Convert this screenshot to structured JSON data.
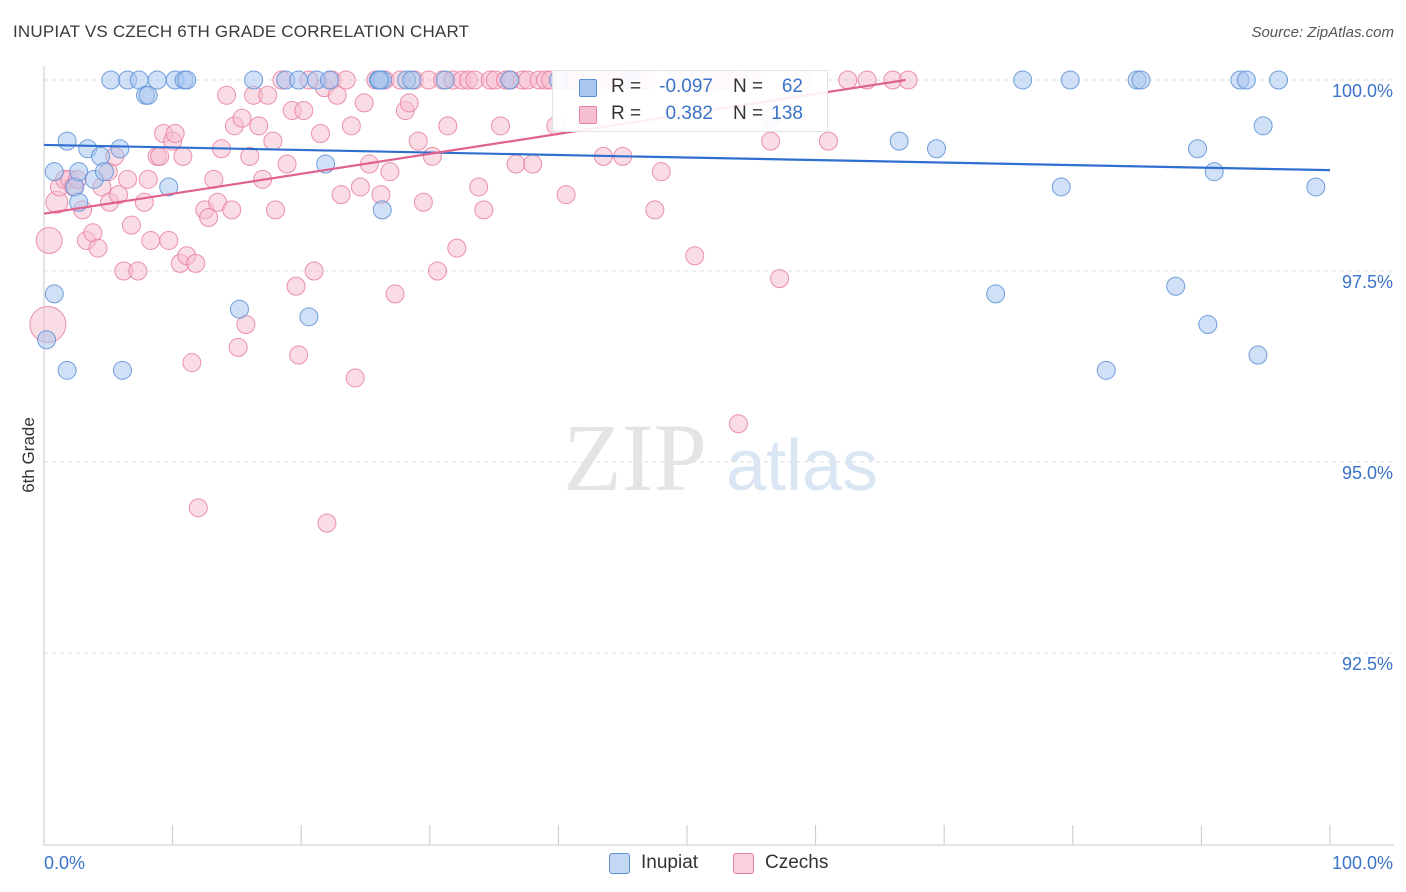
{
  "header": {
    "title": "INUPIAT VS CZECH 6TH GRADE CORRELATION CHART",
    "source": "Source: ZipAtlas.com"
  },
  "watermark": {
    "zip": "ZIP",
    "atlas": "atlas"
  },
  "legend": {
    "r_label": "R =",
    "n_label": "N =",
    "series": [
      {
        "name": "Inupiat",
        "r": "-0.097",
        "n": "62",
        "color": "#5b8fd6",
        "fill": "#aac6ee"
      },
      {
        "name": "Czechs",
        "r": "0.382",
        "n": "138",
        "color": "#e87fa0",
        "fill": "#f6bfd0"
      }
    ]
  },
  "chart_data": {
    "type": "scatter",
    "title": "INUPIAT VS CZECH 6TH GRADE CORRELATION CHART",
    "xlabel": "",
    "ylabel": "6th Grade",
    "xlim": [
      0,
      100
    ],
    "ylim": [
      90.0,
      100.3
    ],
    "x_tick_labels": [
      "0.0%",
      "100.0%"
    ],
    "y_ticks": [
      {
        "value": 100.0,
        "label": "100.0%"
      },
      {
        "value": 97.5,
        "label": "97.5%"
      },
      {
        "value": 95.0,
        "label": "95.0%"
      },
      {
        "value": 92.5,
        "label": "92.5%"
      }
    ],
    "grid": true,
    "series": [
      {
        "name": "Inupiat",
        "color": "#5b8fd6",
        "trend": {
          "x": [
            0,
            100
          ],
          "y": [
            99.15,
            98.82
          ]
        },
        "points": [
          [
            0.2,
            96.6,
            9
          ],
          [
            1.8,
            96.2,
            9
          ],
          [
            0.8,
            97.2,
            9
          ],
          [
            0.8,
            98.8,
            9
          ],
          [
            1.8,
            99.2,
            9
          ],
          [
            2.4,
            98.6,
            9
          ],
          [
            2.7,
            98.8,
            9
          ],
          [
            2.7,
            98.4,
            9
          ],
          [
            3.4,
            99.1,
            9
          ],
          [
            3.9,
            98.7,
            9
          ],
          [
            4.4,
            99.0,
            9
          ],
          [
            4.7,
            98.8,
            9
          ],
          [
            5.2,
            100.0,
            9
          ],
          [
            5.9,
            99.1,
            9
          ],
          [
            6.5,
            100.0,
            9
          ],
          [
            7.4,
            100.0,
            9
          ],
          [
            7.9,
            99.8,
            9
          ],
          [
            8.1,
            99.8,
            9
          ],
          [
            8.8,
            100.0,
            9
          ],
          [
            9.7,
            98.6,
            9
          ],
          [
            10.2,
            100.0,
            9
          ],
          [
            10.9,
            100.0,
            9
          ],
          [
            11.1,
            100.0,
            9
          ],
          [
            6.1,
            96.2,
            9
          ],
          [
            15.2,
            97.0,
            9
          ],
          [
            16.3,
            100.0,
            9
          ],
          [
            18.8,
            100.0,
            9
          ],
          [
            19.8,
            100.0,
            9
          ],
          [
            20.6,
            96.9,
            9
          ],
          [
            21.2,
            100.0,
            9
          ],
          [
            21.9,
            98.9,
            9
          ],
          [
            22.2,
            100.0,
            9
          ],
          [
            26.0,
            100.0,
            9
          ],
          [
            26.3,
            100.0,
            9
          ],
          [
            26.1,
            100.0,
            9
          ],
          [
            26.3,
            98.3,
            9
          ],
          [
            28.2,
            100.0,
            9
          ],
          [
            28.6,
            100.0,
            9
          ],
          [
            31.2,
            100.0,
            9
          ],
          [
            36.2,
            100.0,
            9
          ],
          [
            40.0,
            100.0,
            9
          ],
          [
            45.6,
            100.0,
            9
          ],
          [
            56.5,
            99.5,
            9
          ],
          [
            66.5,
            99.2,
            9
          ],
          [
            69.4,
            99.1,
            9
          ],
          [
            74.0,
            97.2,
            9
          ],
          [
            76.1,
            100.0,
            9
          ],
          [
            79.1,
            98.6,
            9
          ],
          [
            79.8,
            100.0,
            9
          ],
          [
            82.6,
            96.2,
            9
          ],
          [
            85.0,
            100.0,
            9
          ],
          [
            85.3,
            100.0,
            9
          ],
          [
            88.0,
            97.3,
            9
          ],
          [
            89.7,
            99.1,
            9
          ],
          [
            90.5,
            96.8,
            9
          ],
          [
            91.0,
            98.8,
            9
          ],
          [
            93.0,
            100.0,
            9
          ],
          [
            93.5,
            100.0,
            9
          ],
          [
            94.4,
            96.4,
            9
          ],
          [
            94.8,
            99.4,
            9
          ],
          [
            96.0,
            100.0,
            9
          ],
          [
            98.9,
            98.6,
            9
          ]
        ]
      },
      {
        "name": "Czechs",
        "color": "#e87fa0",
        "trend": {
          "x": [
            0,
            67
          ],
          "y": [
            98.25,
            100.0
          ]
        },
        "points": [
          [
            0.3,
            96.8,
            18
          ],
          [
            0.4,
            97.9,
            13
          ],
          [
            1.0,
            98.4,
            11
          ],
          [
            1.2,
            98.6,
            9
          ],
          [
            1.6,
            98.7,
            9
          ],
          [
            2.0,
            98.7,
            9
          ],
          [
            2.3,
            98.6,
            9
          ],
          [
            2.6,
            98.7,
            9
          ],
          [
            3.0,
            98.3,
            9
          ],
          [
            3.3,
            97.9,
            9
          ],
          [
            3.8,
            98.0,
            9
          ],
          [
            4.2,
            97.8,
            9
          ],
          [
            4.5,
            98.6,
            9
          ],
          [
            5.0,
            98.8,
            9
          ],
          [
            5.1,
            98.4,
            9
          ],
          [
            5.5,
            99.0,
            9
          ],
          [
            5.8,
            98.5,
            9
          ],
          [
            6.2,
            97.5,
            9
          ],
          [
            6.5,
            98.7,
            9
          ],
          [
            6.8,
            98.1,
            9
          ],
          [
            7.3,
            97.5,
            9
          ],
          [
            7.8,
            98.4,
            9
          ],
          [
            8.1,
            98.7,
            9
          ],
          [
            8.3,
            97.9,
            9
          ],
          [
            8.8,
            99.0,
            9
          ],
          [
            9.0,
            99.0,
            9
          ],
          [
            9.3,
            99.3,
            9
          ],
          [
            9.7,
            97.9,
            9
          ],
          [
            10.0,
            99.2,
            9
          ],
          [
            10.2,
            99.3,
            9
          ],
          [
            10.6,
            97.6,
            9
          ],
          [
            10.8,
            99.0,
            9
          ],
          [
            11.1,
            97.7,
            9
          ],
          [
            11.5,
            96.3,
            9
          ],
          [
            11.8,
            97.6,
            9
          ],
          [
            12.0,
            94.4,
            9
          ],
          [
            12.5,
            98.3,
            9
          ],
          [
            12.8,
            98.2,
            9
          ],
          [
            13.2,
            98.7,
            9
          ],
          [
            13.5,
            98.4,
            9
          ],
          [
            13.8,
            99.1,
            9
          ],
          [
            14.2,
            99.8,
            9
          ],
          [
            14.6,
            98.3,
            9
          ],
          [
            14.8,
            99.4,
            9
          ],
          [
            15.1,
            96.5,
            9
          ],
          [
            15.4,
            99.5,
            9
          ],
          [
            15.7,
            96.8,
            9
          ],
          [
            16.0,
            99.0,
            9
          ],
          [
            16.3,
            99.8,
            9
          ],
          [
            16.7,
            99.4,
            9
          ],
          [
            17.0,
            98.7,
            9
          ],
          [
            17.4,
            99.8,
            9
          ],
          [
            17.8,
            99.2,
            9
          ],
          [
            18.0,
            98.3,
            9
          ],
          [
            18.5,
            100.0,
            9
          ],
          [
            18.9,
            98.9,
            9
          ],
          [
            19.3,
            99.6,
            9
          ],
          [
            19.6,
            97.3,
            9
          ],
          [
            19.8,
            96.4,
            9
          ],
          [
            20.2,
            99.6,
            9
          ],
          [
            20.6,
            100.0,
            9
          ],
          [
            21.0,
            97.5,
            9
          ],
          [
            21.5,
            99.3,
            9
          ],
          [
            21.8,
            99.9,
            9
          ],
          [
            22.0,
            94.2,
            9
          ],
          [
            22.4,
            100.0,
            9
          ],
          [
            22.8,
            99.8,
            9
          ],
          [
            23.1,
            98.5,
            9
          ],
          [
            23.5,
            100.0,
            9
          ],
          [
            23.9,
            99.4,
            9
          ],
          [
            24.2,
            96.1,
            9
          ],
          [
            24.6,
            98.6,
            9
          ],
          [
            24.9,
            99.7,
            9
          ],
          [
            25.3,
            98.9,
            9
          ],
          [
            25.8,
            100.0,
            9
          ],
          [
            26.2,
            98.5,
            9
          ],
          [
            26.5,
            100.0,
            9
          ],
          [
            26.9,
            98.8,
            9
          ],
          [
            27.3,
            97.2,
            9
          ],
          [
            27.7,
            100.0,
            9
          ],
          [
            28.1,
            99.6,
            9
          ],
          [
            28.4,
            99.7,
            9
          ],
          [
            28.8,
            100.0,
            9
          ],
          [
            29.1,
            99.2,
            9
          ],
          [
            29.5,
            98.4,
            9
          ],
          [
            29.9,
            100.0,
            9
          ],
          [
            30.2,
            99.0,
            9
          ],
          [
            30.6,
            97.5,
            9
          ],
          [
            31.0,
            100.0,
            9
          ],
          [
            31.4,
            99.4,
            9
          ],
          [
            31.8,
            100.0,
            9
          ],
          [
            32.1,
            97.8,
            9
          ],
          [
            32.5,
            100.0,
            9
          ],
          [
            33.0,
            100.0,
            9
          ],
          [
            33.5,
            100.0,
            9
          ],
          [
            33.8,
            98.6,
            9
          ],
          [
            34.2,
            98.3,
            9
          ],
          [
            34.7,
            100.0,
            9
          ],
          [
            35.1,
            100.0,
            9
          ],
          [
            35.5,
            99.4,
            9
          ],
          [
            35.9,
            100.0,
            9
          ],
          [
            36.3,
            100.0,
            9
          ],
          [
            36.7,
            98.9,
            9
          ],
          [
            37.2,
            100.0,
            9
          ],
          [
            37.6,
            100.0,
            9
          ],
          [
            38.0,
            98.9,
            9
          ],
          [
            38.5,
            100.0,
            9
          ],
          [
            39.0,
            100.0,
            9
          ],
          [
            39.4,
            100.0,
            9
          ],
          [
            39.8,
            99.4,
            9
          ],
          [
            40.2,
            100.0,
            9
          ],
          [
            40.6,
            98.5,
            9
          ],
          [
            41.0,
            100.0,
            9
          ],
          [
            41.5,
            100.0,
            9
          ],
          [
            42.0,
            100.0,
            9
          ],
          [
            42.5,
            100.0,
            9
          ],
          [
            43.0,
            100.0,
            9
          ],
          [
            43.5,
            99.0,
            9
          ],
          [
            44.0,
            100.0,
            9
          ],
          [
            44.5,
            100.0,
            9
          ],
          [
            45.0,
            99.0,
            9
          ],
          [
            46.0,
            100.0,
            9
          ],
          [
            46.8,
            100.0,
            9
          ],
          [
            47.5,
            98.3,
            9
          ],
          [
            48.0,
            98.8,
            9
          ],
          [
            49.0,
            100.0,
            9
          ],
          [
            50.0,
            100.0,
            9
          ],
          [
            50.6,
            97.7,
            9
          ],
          [
            51.5,
            100.0,
            9
          ],
          [
            52.0,
            100.0,
            9
          ],
          [
            52.8,
            100.0,
            9
          ],
          [
            53.5,
            100.0,
            9
          ],
          [
            54.0,
            95.5,
            9
          ],
          [
            55.0,
            100.0,
            9
          ],
          [
            56.5,
            99.2,
            9
          ],
          [
            57.2,
            97.4,
            9
          ],
          [
            59.0,
            100.0,
            9
          ],
          [
            61.0,
            99.2,
            9
          ],
          [
            62.5,
            100.0,
            9
          ],
          [
            64.0,
            100.0,
            9
          ],
          [
            66.0,
            100.0,
            9
          ],
          [
            67.2,
            100.0,
            9
          ],
          [
            45.5,
            100.0,
            9
          ]
        ]
      }
    ]
  }
}
